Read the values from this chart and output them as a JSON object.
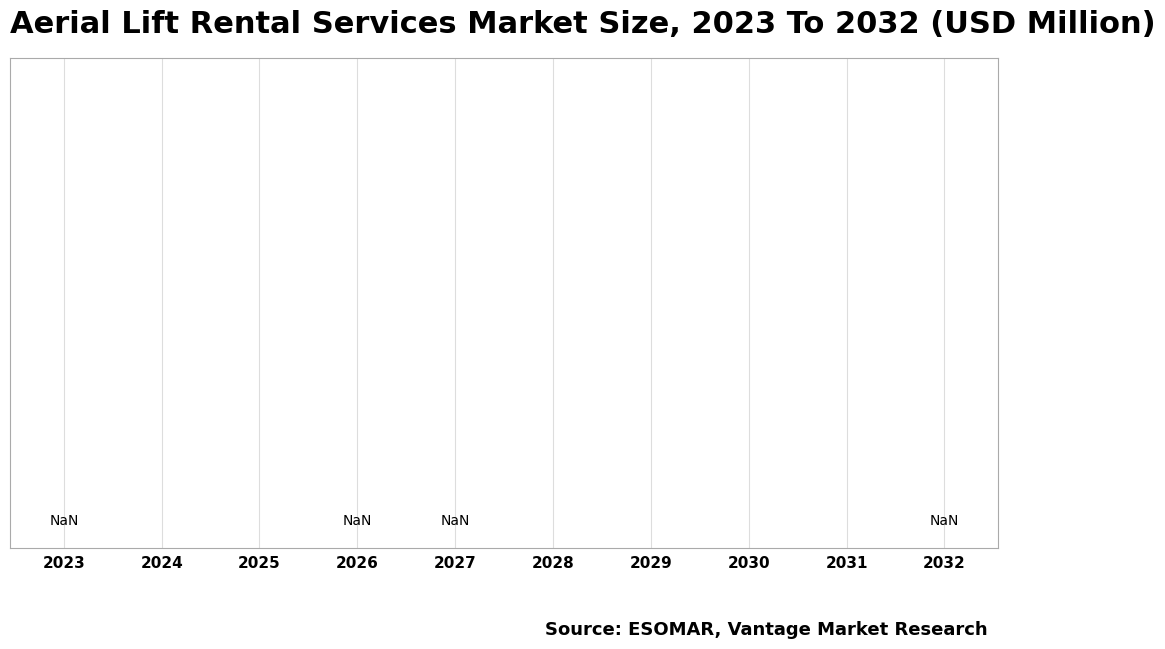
{
  "title": "Aerial Lift Rental Services Market Size, 2023 To 2032 (USD Million)",
  "years": [
    2023,
    2024,
    2025,
    2026,
    2027,
    2028,
    2029,
    2030,
    2031,
    2032
  ],
  "nan_labels": [
    2023,
    2026,
    2027,
    2032
  ],
  "source_text": "Source: ESOMAR, Vantage Market Research",
  "background_color": "#ffffff",
  "grid_color": "#dddddd",
  "border_color": "#aaaaaa",
  "title_fontsize": 22,
  "title_fontweight": "bold",
  "xlabel_fontsize": 11,
  "nan_fontsize": 10,
  "source_fontsize": 13,
  "source_fontweight": "bold",
  "ylim": [
    0,
    1
  ],
  "xlim": [
    2022.45,
    2032.55
  ]
}
